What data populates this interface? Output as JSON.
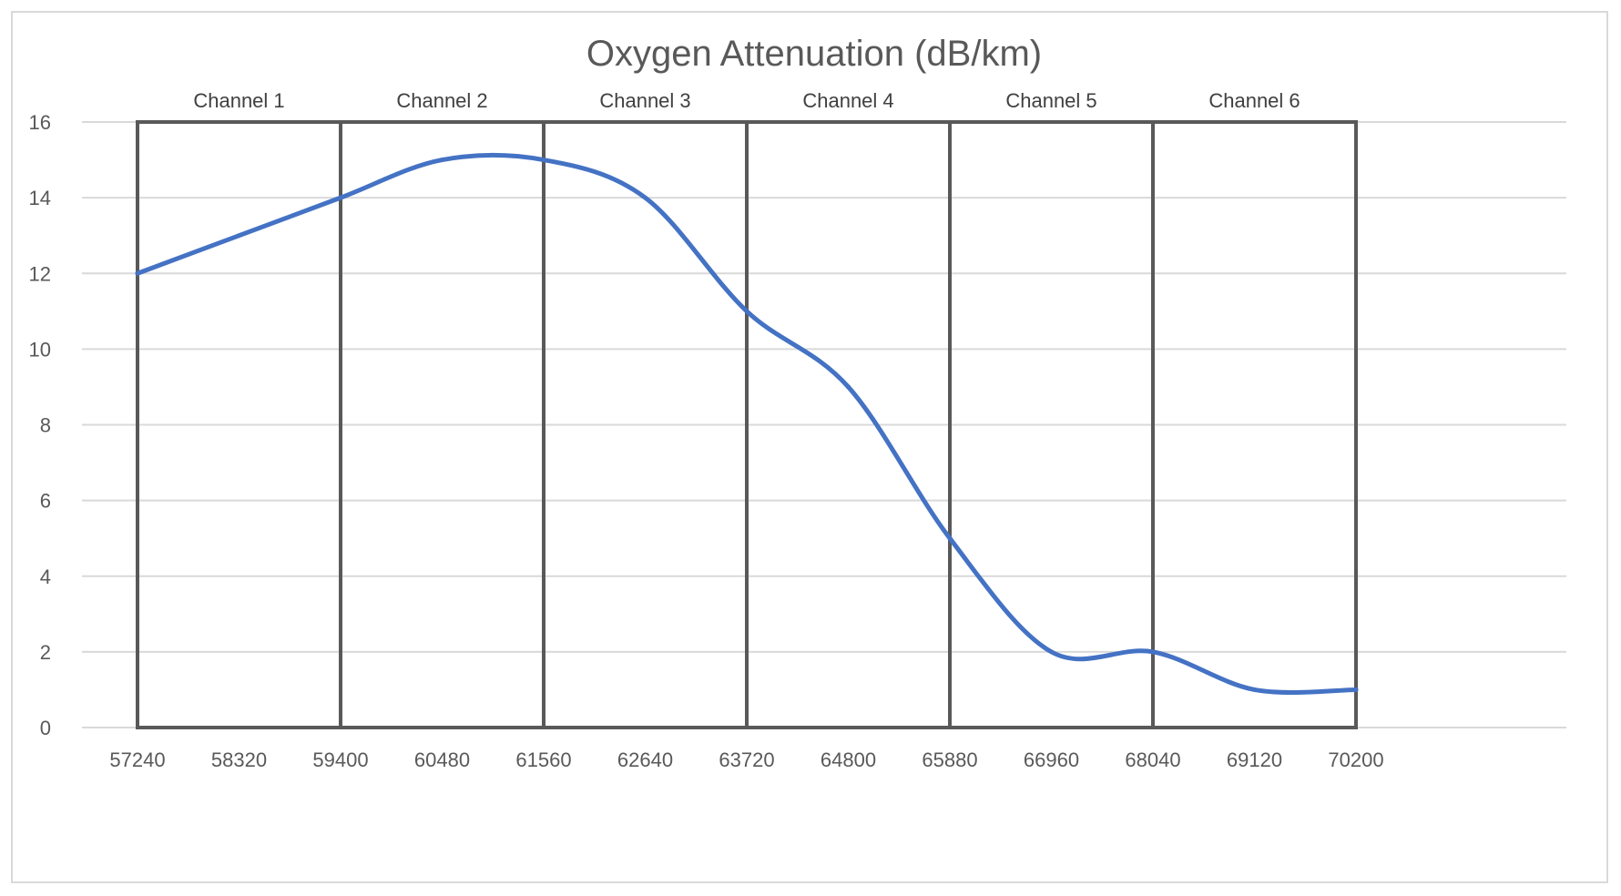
{
  "chart_data": {
    "type": "line",
    "title": "Oxygen Attenuation (dB/km)",
    "xlabel": "",
    "ylabel": "",
    "x": [
      57240,
      58320,
      59400,
      60480,
      61560,
      62640,
      63720,
      64800,
      65880,
      66960,
      68040,
      69120,
      70200
    ],
    "x_tick_labels": [
      "57240",
      "58320",
      "59400",
      "60480",
      "61560",
      "62640",
      "63720",
      "64800",
      "65880",
      "66960",
      "68040",
      "69120",
      "70200"
    ],
    "series": [
      {
        "name": "Oxygen Attenuation (dB/km)",
        "color": "#4472c4",
        "values": [
          12,
          13,
          14,
          15,
          15,
          14,
          11,
          9,
          5,
          2,
          2,
          1,
          1
        ]
      }
    ],
    "ylim": [
      0,
      16
    ],
    "y_ticks": [
      0,
      2,
      4,
      6,
      8,
      10,
      12,
      14,
      16
    ],
    "grid": true,
    "channels": [
      {
        "label": "Channel 1",
        "start": 57240,
        "end": 59400
      },
      {
        "label": "Channel 2",
        "start": 59400,
        "end": 61560
      },
      {
        "label": "Channel 3",
        "start": 61560,
        "end": 63720
      },
      {
        "label": "Channel 4",
        "start": 63720,
        "end": 65880
      },
      {
        "label": "Channel 5",
        "start": 65880,
        "end": 68040
      },
      {
        "label": "Channel 6",
        "start": 68040,
        "end": 70200
      }
    ],
    "colors": {
      "line": "#4472c4",
      "grid": "#d9d9d9",
      "channel_box": "#595959",
      "title": "#595959"
    }
  }
}
